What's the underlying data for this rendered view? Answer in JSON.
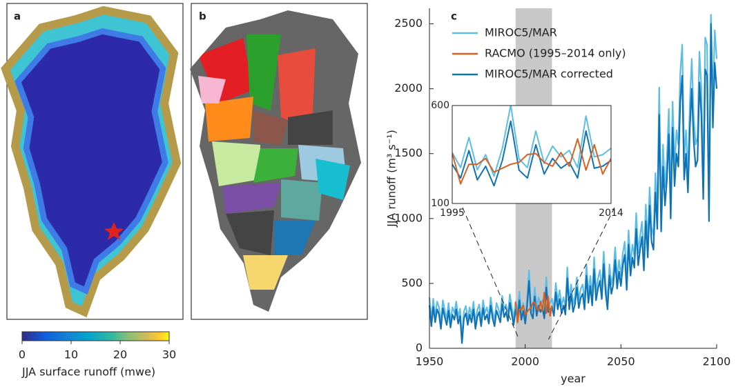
{
  "panels": [
    {
      "label": "a"
    },
    {
      "label": "b"
    }
  ],
  "colorbar": {
    "label": "JJA surface runoff (mwe)",
    "lim": [
      0,
      30
    ],
    "ticks": [
      0,
      10,
      20,
      30
    ]
  },
  "chart_data": [
    {
      "type": "line",
      "panel_label": "c",
      "xlabel": "year",
      "ylabel": "JJA runoff (m³ s⁻¹)",
      "xlim": [
        1950,
        2100
      ],
      "ylim": [
        0,
        2620
      ],
      "xticks": [
        1950,
        2000,
        2050,
        2100
      ],
      "yticks": [
        0,
        500,
        1000,
        1500,
        2000,
        2500
      ],
      "highlight": [
        1995,
        2014
      ],
      "legend": "upper left",
      "x": [
        1950,
        1951,
        1952,
        1953,
        1954,
        1955,
        1956,
        1957,
        1958,
        1959,
        1960,
        1961,
        1962,
        1963,
        1964,
        1965,
        1966,
        1967,
        1968,
        1969,
        1970,
        1971,
        1972,
        1973,
        1974,
        1975,
        1976,
        1977,
        1978,
        1979,
        1980,
        1981,
        1982,
        1983,
        1984,
        1985,
        1986,
        1987,
        1988,
        1989,
        1990,
        1991,
        1992,
        1993,
        1994,
        1995,
        1996,
        1997,
        1998,
        1999,
        2000,
        2001,
        2002,
        2003,
        2004,
        2005,
        2006,
        2007,
        2008,
        2009,
        2010,
        2011,
        2012,
        2013,
        2014,
        2015,
        2016,
        2017,
        2018,
        2019,
        2020,
        2021,
        2022,
        2023,
        2024,
        2025,
        2026,
        2027,
        2028,
        2029,
        2030,
        2031,
        2032,
        2033,
        2034,
        2035,
        2036,
        2037,
        2038,
        2039,
        2040,
        2041,
        2042,
        2043,
        2044,
        2045,
        2046,
        2047,
        2048,
        2049,
        2050,
        2051,
        2052,
        2053,
        2054,
        2055,
        2056,
        2057,
        2058,
        2059,
        2060,
        2061,
        2062,
        2063,
        2064,
        2065,
        2066,
        2067,
        2068,
        2069,
        2070,
        2071,
        2072,
        2073,
        2074,
        2075,
        2076,
        2077,
        2078,
        2079,
        2080,
        2081,
        2082,
        2083,
        2084,
        2085,
        2086,
        2087,
        2088,
        2089,
        2090,
        2091,
        2092,
        2093,
        2094,
        2095,
        2096,
        2097,
        2098,
        2099,
        2100
      ],
      "series": [
        {
          "name": "MIROC5/MAR",
          "color": "#5bbde8",
          "values": [
            393,
            217,
            382,
            250,
            360,
            316,
            195,
            371,
            294,
            228,
            349,
            206,
            316,
            272,
            360,
            239,
            305,
            74,
            283,
            327,
            228,
            316,
            250,
            360,
            195,
            294,
            338,
            217,
            371,
            272,
            316,
            239,
            393,
            283,
            217,
            349,
            305,
            250,
            404,
            294,
            338,
            261,
            415,
            316,
            228,
            360,
            283,
            437,
            272,
            349,
            239,
            382,
            602,
            327,
            283,
            470,
            305,
            393,
            338,
            371,
            283,
            547,
            338,
            349,
            382,
            305,
            503,
            360,
            448,
            327,
            393,
            316,
            624,
            360,
            492,
            338,
            404,
            547,
            371,
            459,
            492,
            360,
            646,
            415,
            558,
            393,
            701,
            437,
            536,
            602,
            448,
            745,
            503,
            360,
            646,
            492,
            569,
            778,
            536,
            679,
            558,
            734,
            822,
            525,
            910,
            646,
            800,
            712,
            1042,
            734,
            866,
            976,
            690,
            1108,
            800,
            1240,
            932,
            866,
            1350,
            1042,
            2010,
            1020,
            1570,
            1240,
            1460,
            1845,
            1130,
            1900,
            1405,
            1680,
            1570,
            2120,
            2340,
            1460,
            1680,
            1350,
            1900,
            2230,
            1790,
            1570,
            1625,
            2285,
            2010,
            1295,
            2395,
            2340,
            1108,
            2570,
            1900,
            2450,
            2230
          ]
        },
        {
          "name": "RACMO (1995–2014 only)",
          "color": "#d95f1f",
          "x": [
            1995,
            1996,
            1997,
            1998,
            1999,
            2000,
            2001,
            2002,
            2003,
            2004,
            2005,
            2006,
            2007,
            2008,
            2009,
            2010,
            2011,
            2012,
            2013,
            2014
          ],
          "values": [
            357,
            200,
            300,
            300,
            330,
            260,
            280,
            300,
            310,
            350,
            355,
            310,
            290,
            360,
            290,
            430,
            270,
            400,
            250,
            330
          ]
        },
        {
          "name": "MIROC5/MAR corrected",
          "color": "#0f72b5",
          "values": [
            330,
            170,
            320,
            200,
            300,
            260,
            150,
            310,
            240,
            180,
            290,
            160,
            260,
            220,
            300,
            190,
            250,
            40,
            230,
            270,
            180,
            260,
            200,
            300,
            150,
            240,
            280,
            170,
            310,
            220,
            260,
            190,
            330,
            230,
            170,
            290,
            250,
            200,
            340,
            240,
            280,
            210,
            350,
            260,
            180,
            300,
            230,
            370,
            220,
            290,
            190,
            320,
            520,
            270,
            230,
            400,
            250,
            330,
            280,
            310,
            230,
            470,
            280,
            290,
            320,
            250,
            430,
            300,
            380,
            270,
            330,
            260,
            540,
            300,
            420,
            280,
            340,
            470,
            310,
            390,
            420,
            300,
            560,
            350,
            480,
            330,
            610,
            370,
            460,
            520,
            380,
            650,
            430,
            300,
            560,
            420,
            490,
            680,
            460,
            590,
            480,
            640,
            720,
            450,
            800,
            560,
            700,
            620,
            920,
            640,
            760,
            860,
            600,
            980,
            700,
            1100,
            820,
            760,
            1200,
            920,
            1800,
            900,
            1400,
            1100,
            1300,
            1650,
            1000,
            1700,
            1250,
            1500,
            1400,
            1900,
            2100,
            1300,
            1500,
            1200,
            1700,
            2000,
            1600,
            1400,
            1450,
            2050,
            1800,
            1150,
            2150,
            2100,
            980,
            2500,
            1700,
            2200,
            2000
          ]
        }
      ]
    },
    {
      "type": "line",
      "xlim": [
        1995,
        2014
      ],
      "ylim": [
        100,
        600
      ],
      "xticks": [
        1995,
        2014
      ],
      "yticks": [
        100,
        600
      ]
    }
  ]
}
